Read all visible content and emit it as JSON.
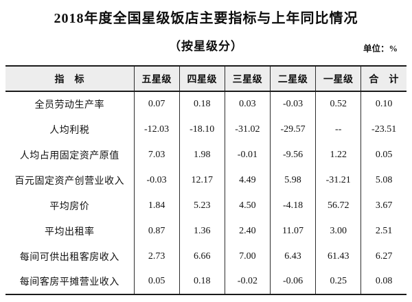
{
  "title": "2018年度全国星级饭店主要指标与上年同比情况",
  "subtitle": "（按星级分）",
  "unit_label": "单位：%",
  "colors": {
    "header_bg": "#ededed",
    "border_color": "#1a1a1a"
  },
  "table": {
    "columns": [
      "指　标",
      "五星级",
      "四星级",
      "三星级",
      "二星级",
      "一星级",
      "合　计"
    ],
    "rows": [
      {
        "label": "全员劳动生产率",
        "values": [
          "0.07",
          "0.18",
          "0.03",
          "-0.03",
          "0.52",
          "0.10"
        ]
      },
      {
        "label": "人均利税",
        "values": [
          "-12.03",
          "-18.10",
          "-31.02",
          "-29.57",
          "--",
          "-23.51"
        ]
      },
      {
        "label": "人均占用固定资产原值",
        "values": [
          "7.03",
          "1.98",
          "-0.01",
          "-9.56",
          "1.22",
          "0.05"
        ]
      },
      {
        "label": "百元固定资产创营业收入",
        "values": [
          "-0.03",
          "12.17",
          "4.49",
          "5.98",
          "-31.21",
          "5.08"
        ]
      },
      {
        "label": "平均房价",
        "values": [
          "1.84",
          "5.23",
          "4.50",
          "-4.18",
          "56.72",
          "3.67"
        ]
      },
      {
        "label": "平均出租率",
        "values": [
          "0.87",
          "1.36",
          "2.40",
          "11.07",
          "3.00",
          "2.51"
        ]
      },
      {
        "label": "每间可供出租客房收入",
        "values": [
          "2.73",
          "6.66",
          "7.00",
          "6.43",
          "61.43",
          "6.27"
        ]
      },
      {
        "label": "每间客房平摊营业收入",
        "values": [
          "0.05",
          "0.18",
          "-0.02",
          "-0.06",
          "0.25",
          "0.08"
        ]
      }
    ]
  }
}
